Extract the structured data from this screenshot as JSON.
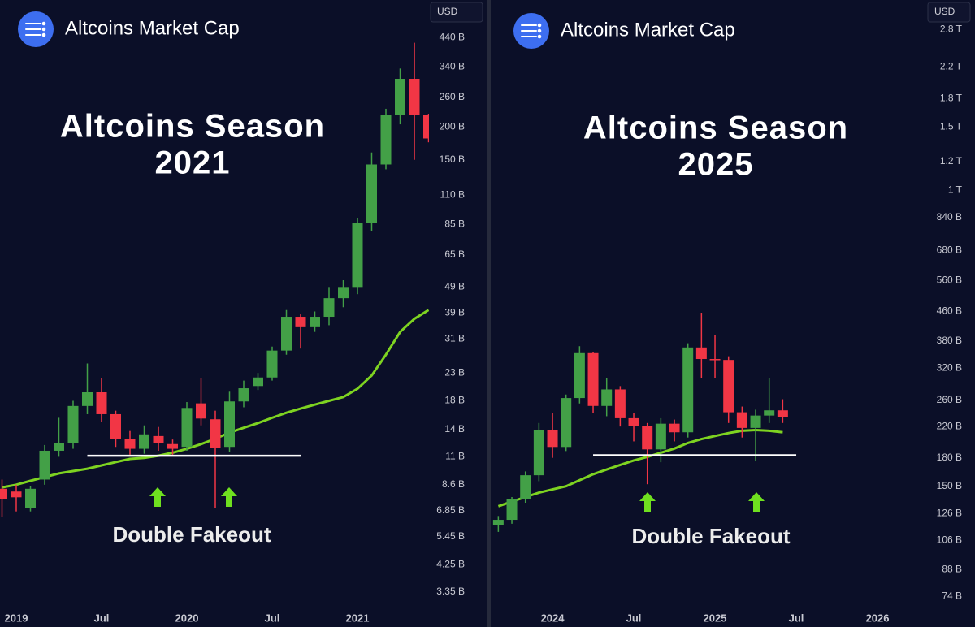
{
  "chart_data": [
    {
      "type": "candlestick",
      "header": "Altcoins Market Cap",
      "currency": "USD",
      "title": "Altcoins Season",
      "subtitle": "2021",
      "annotation": "Double Fakeout",
      "log_scale": true,
      "up_color": "#43a047",
      "down_color": "#f23645",
      "ma_color": "#7ed321",
      "level_color": "#ffffff",
      "x": [
        "2018-12",
        "2019-01",
        "2019-02",
        "2019-03",
        "2019-04",
        "2019-05",
        "2019-06",
        "2019-07",
        "2019-08",
        "2019-09",
        "2019-10",
        "2019-11",
        "2019-12",
        "2020-01",
        "2020-02",
        "2020-03",
        "2020-04",
        "2020-05",
        "2020-06",
        "2020-07",
        "2020-08",
        "2020-09",
        "2020-10",
        "2020-11",
        "2020-12",
        "2021-01",
        "2021-02",
        "2021-03",
        "2021-04",
        "2021-05",
        "2021-06"
      ],
      "open": [
        8.3,
        8.1,
        7.0,
        9.0,
        11.6,
        12.4,
        17.2,
        19.4,
        16,
        12.9,
        11.8,
        13.2,
        12.3,
        12.0,
        17.6,
        15.3,
        12,
        17.9,
        20.5,
        22.1,
        28,
        37.7,
        34.4,
        37.7,
        44.4,
        49,
        86,
        144,
        222,
        306,
        222
      ],
      "high": [
        9,
        8.6,
        8.5,
        12.2,
        15.5,
        18,
        25,
        22,
        16.5,
        13.8,
        14.5,
        14.3,
        12.8,
        17.8,
        22,
        16.5,
        19.5,
        21.5,
        23,
        29,
        40,
        38.5,
        39.5,
        49,
        52,
        90,
        160,
        235,
        335,
        420,
        225
      ],
      "low": [
        6.5,
        6.8,
        6.8,
        8.6,
        11.0,
        11.8,
        16,
        15,
        12,
        11.2,
        11.3,
        11.6,
        11.2,
        11.6,
        14.5,
        7.0,
        11.5,
        17,
        19.8,
        21.5,
        27,
        28.5,
        33,
        35,
        41,
        46,
        80,
        138,
        205,
        150,
        175
      ],
      "close": [
        7.6,
        7.7,
        8.3,
        11.6,
        12.4,
        17.2,
        19.4,
        16.0,
        12.9,
        11.8,
        13.4,
        12.4,
        11.8,
        16.9,
        15.4,
        11.9,
        17.9,
        20.1,
        22.1,
        28,
        37.7,
        34.4,
        37.7,
        44.4,
        49,
        86,
        144,
        222,
        306,
        222,
        181
      ],
      "ma": [
        8.4,
        8.6,
        8.9,
        9.2,
        9.5,
        9.7,
        9.9,
        10.2,
        10.5,
        10.8,
        10.9,
        11.1,
        11.4,
        11.8,
        12.3,
        12.9,
        13.6,
        14.2,
        14.8,
        15.5,
        16.2,
        16.8,
        17.4,
        18.0,
        18.6,
        20,
        22.5,
        27,
        33,
        37,
        40
      ],
      "level": {
        "value": 11.1,
        "x": [
          "2019-06",
          "2020-09"
        ]
      },
      "xlim": [
        "2018-11",
        "2021-07"
      ],
      "xticks": [
        {
          "value": "2019-01",
          "label": "2019"
        },
        {
          "value": "2019-07",
          "label": "Jul"
        },
        {
          "value": "2020-01",
          "label": "2020"
        },
        {
          "value": "2020-07",
          "label": "Jul"
        },
        {
          "value": "2021-01",
          "label": "2021"
        }
      ],
      "ylim": [
        2.92,
        612
      ],
      "yticks": [
        {
          "value": 440,
          "label": "440 B"
        },
        {
          "value": 340,
          "label": "340 B"
        },
        {
          "value": 260,
          "label": "260 B"
        },
        {
          "value": 200,
          "label": "200 B"
        },
        {
          "value": 150,
          "label": "150 B"
        },
        {
          "value": 110,
          "label": "110 B"
        },
        {
          "value": 85,
          "label": "85 B"
        },
        {
          "value": 65,
          "label": "65 B"
        },
        {
          "value": 49,
          "label": "49 B"
        },
        {
          "value": 39,
          "label": "39 B"
        },
        {
          "value": 31,
          "label": "31 B"
        },
        {
          "value": 23,
          "label": "23 B"
        },
        {
          "value": 18,
          "label": "18 B"
        },
        {
          "value": 14,
          "label": "14 B"
        },
        {
          "value": 11,
          "label": "11 B"
        },
        {
          "value": 8.6,
          "label": "8.6 B"
        },
        {
          "value": 6.85,
          "label": "6.85 B"
        },
        {
          "value": 5.45,
          "label": "5.45 B"
        },
        {
          "value": 4.25,
          "label": "4.25 B"
        },
        {
          "value": 3.35,
          "label": "3.35 B"
        }
      ]
    },
    {
      "type": "candlestick",
      "header": "Altcoins Market Cap",
      "currency": "USD",
      "title": "Altcoins Season",
      "subtitle": "2025",
      "annotation": "Double Fakeout",
      "log_scale": true,
      "up_color": "#43a047",
      "down_color": "#f23645",
      "ma_color": "#7ed321",
      "level_color": "#ffffff",
      "x": [
        "2023-09",
        "2023-10",
        "2023-11",
        "2023-12",
        "2024-01",
        "2024-02",
        "2024-03",
        "2024-04",
        "2024-05",
        "2024-06",
        "2024-07",
        "2024-08",
        "2024-09",
        "2024-10",
        "2024-11",
        "2024-12",
        "2025-01",
        "2025-02",
        "2025-03",
        "2025-04",
        "2025-05",
        "2025-06"
      ],
      "open": [
        117,
        121,
        138,
        161,
        215,
        193,
        264,
        352,
        251,
        279,
        232,
        221,
        190,
        224,
        212,
        365,
        339,
        337,
        241,
        218,
        236,
        244
      ],
      "high": [
        124,
        140,
        165,
        225,
        240,
        270,
        368,
        355,
        300,
        285,
        240,
        225,
        232,
        230,
        375,
        456,
        395,
        345,
        250,
        245,
        300,
        262
      ],
      "low": [
        112,
        118,
        135,
        155,
        180,
        188,
        255,
        240,
        235,
        220,
        200,
        152,
        175,
        200,
        205,
        300,
        300,
        225,
        205,
        176,
        225,
        225
      ],
      "close": [
        121,
        138,
        161,
        215,
        193,
        264,
        352,
        251,
        279,
        232,
        221,
        190,
        224,
        212,
        365,
        339,
        337,
        241,
        218,
        236,
        244,
        234
      ],
      "ma": [
        132,
        136,
        140,
        144,
        147,
        150,
        156,
        162,
        167,
        172,
        177,
        181,
        186,
        191,
        198,
        203,
        207,
        211,
        214,
        215,
        214,
        212
      ],
      "level": {
        "value": 183,
        "x": [
          "2024-04",
          "2025-07"
        ]
      },
      "xlim": [
        "2023-08",
        "2026-02"
      ],
      "xticks": [
        {
          "value": "2024-01",
          "label": "2024"
        },
        {
          "value": "2024-07",
          "label": "Jul"
        },
        {
          "value": "2025-01",
          "label": "2025"
        },
        {
          "value": "2025-07",
          "label": "Jul"
        },
        {
          "value": "2026-01",
          "label": "2026"
        }
      ],
      "ylim": [
        69,
        3380
      ],
      "yticks": [
        {
          "value": 2800,
          "label": "2.8 T"
        },
        {
          "value": 2200,
          "label": "2.2 T"
        },
        {
          "value": 1800,
          "label": "1.8 T"
        },
        {
          "value": 1500,
          "label": "1.5 T"
        },
        {
          "value": 1200,
          "label": "1.2 T"
        },
        {
          "value": 1000,
          "label": "1 T"
        },
        {
          "value": 840,
          "label": "840 B"
        },
        {
          "value": 680,
          "label": "680 B"
        },
        {
          "value": 560,
          "label": "560 B"
        },
        {
          "value": 460,
          "label": "460 B"
        },
        {
          "value": 380,
          "label": "380 B"
        },
        {
          "value": 320,
          "label": "320 B"
        },
        {
          "value": 260,
          "label": "260 B"
        },
        {
          "value": 220,
          "label": "220 B"
        },
        {
          "value": 180,
          "label": "180 B"
        },
        {
          "value": 150,
          "label": "150 B"
        },
        {
          "value": 126,
          "label": "126 B"
        },
        {
          "value": 106,
          "label": "106 B"
        },
        {
          "value": 88,
          "label": "88 B"
        },
        {
          "value": 74,
          "label": "74 B"
        }
      ]
    }
  ]
}
